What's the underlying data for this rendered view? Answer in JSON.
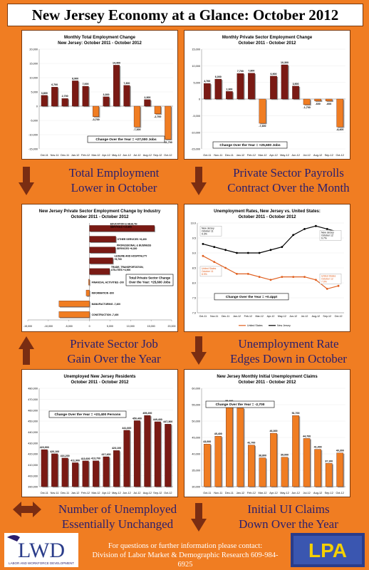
{
  "title": "New Jersey Economy at a Glance: October 2012",
  "captions": {
    "c1": [
      "Total Employment",
      "Lower in October"
    ],
    "c2": [
      "Private Sector Payrolls",
      "Contract Over the Month"
    ],
    "c3": [
      "Private Sector Job",
      "Gain Over the Year"
    ],
    "c4": [
      "Unemployment Rate",
      "Edges Down in October"
    ],
    "c5": [
      "Number of Unemployed",
      "Essentially Unchanged"
    ],
    "c6": [
      "Initial UI Claims",
      "Down Over the Year"
    ]
  },
  "footer": {
    "line1": "For questions or further information please contact:",
    "line2": "Division of Labor Market & Demographic Research 609-984-6925",
    "lwd_logo": "LWD",
    "lwd_sub": "LABOR AND WORKFORCE DEVELOPMENT",
    "lpa_logo": "LPA"
  },
  "colors": {
    "accent": "#f07d22",
    "bar_dark": "#7a1a14",
    "bar_orange": "#f07d22",
    "navy": "#2a1e6e"
  },
  "chart_data": [
    {
      "type": "bar",
      "title": "Monthly Total Employment Change",
      "subtitle": "New Jersey: October 2011 - October 2012",
      "categories": [
        "Oct-11",
        "Nov-11",
        "Dec-11",
        "Jan-12",
        "Feb-12",
        "Mar-12",
        "Apr-12",
        "May-12",
        "Jun-12",
        "Jul-12",
        "Aug-12",
        "Sep-12",
        "Oct-12"
      ],
      "values": [
        3800,
        6700,
        2700,
        8900,
        7000,
        -3700,
        3300,
        14400,
        7300,
        -7300,
        2300,
        -2700,
        -11700
      ],
      "value_labels": [
        "3,800",
        "6,700",
        "2,700",
        "8,900",
        "7,000",
        "-3,700",
        "3,300",
        "14,400",
        "7,300",
        "-7,300",
        "2,300",
        "-2,700",
        "-11,700"
      ],
      "ylim": [
        -15000,
        20000
      ],
      "yticks": [
        "20,000",
        "15,000",
        "10,000",
        "5,000",
        "0",
        "-5,000",
        "-10,000",
        "-15,000"
      ],
      "annotation": "Change Over the Year = +27,000 Jobs"
    },
    {
      "type": "bar",
      "title": "Monthly Private Sector Employment Change",
      "subtitle": "October 2011 - October 2012",
      "categories": [
        "Oct-11",
        "Nov-11",
        "Dec-11",
        "Jan-12",
        "Feb-12",
        "Mar-12",
        "Apr-12",
        "May-12",
        "Jun-12",
        "Jul-12",
        "Aug-12",
        "Sep-12",
        "Oct-12"
      ],
      "values": [
        4700,
        6000,
        2300,
        7700,
        7800,
        -7300,
        6900,
        10300,
        3900,
        -1700,
        -600,
        -600,
        -8400
      ],
      "value_labels": [
        "4,700",
        "6,000",
        "2,300",
        "7,700",
        "7,800",
        "-7,300",
        "6,900",
        "10,300",
        "3,900",
        "-1,700",
        "-600",
        "-600",
        "-8,400"
      ],
      "ylim": [
        -15000,
        15000
      ],
      "yticks": [
        "15,000",
        "10,000",
        "5,000",
        "0",
        "-5,000",
        "-10,000",
        "-15,000"
      ],
      "annotation": "Change Over the Year = +25,600 Jobs"
    },
    {
      "type": "bar",
      "title": "New Jersey Private Sector Employment Change by Industry",
      "subtitle": "October 2011 - October 2012",
      "categories": [
        "EDUCATION & HEALTH SERVICES +15,800",
        "OTHER SERVICES +6,400",
        "PROFESSIONAL & BUSINESS SERVICES +6,300",
        "LEISURE AND HOSPITALITY +5,700",
        "TRADE, TRANSPORTATION, UTILITIES +4,900",
        "FINANCIAL ACTIVITIES -200",
        "INFORMATION -800",
        "MANUFACTURING -7,400",
        "CONSTRUCTION -7,400"
      ],
      "values": [
        15800,
        6400,
        6300,
        5700,
        4900,
        -200,
        -800,
        -7400,
        -7400
      ],
      "xlim": [
        -15000,
        20000
      ],
      "xticks": [
        "-15,000",
        "-10,000",
        "-5,000",
        "0",
        "5,000",
        "10,000",
        "15,000",
        "20,000"
      ],
      "annotation": [
        "Total Private Sector Change",
        "Over the Year: +25,600 Jobs"
      ]
    },
    {
      "type": "line",
      "title": "Unemployment Rates, New Jersey vs. United States:",
      "subtitle": "October 2011 - October 2012",
      "categories": [
        "Oct-11",
        "Nov-11",
        "Dec-11",
        "Jan-12",
        "Feb-12",
        "Mar-12",
        "Apr-12",
        "May-12",
        "Jun-12",
        "Jul-12",
        "Aug-12",
        "Sep-12",
        "Oct-12"
      ],
      "series": [
        {
          "name": "United States",
          "values": [
            8.9,
            8.7,
            8.5,
            8.3,
            8.3,
            8.2,
            8.1,
            8.2,
            8.2,
            8.2,
            8.1,
            7.8,
            7.9
          ]
        },
        {
          "name": "New Jersey",
          "values": [
            9.3,
            9.2,
            9.1,
            9.0,
            9.0,
            9.0,
            9.1,
            9.2,
            9.6,
            9.8,
            9.9,
            9.8,
            9.7
          ]
        }
      ],
      "ylim": [
        7.0,
        10.0
      ],
      "yticks": [
        "10.0",
        "9.5",
        "9.0",
        "8.5",
        "8.0",
        "7.5",
        "7.0"
      ],
      "callouts": {
        "nj_start": [
          "New Jersey",
          "October 11",
          "9.3%"
        ],
        "nj_end": [
          "New Jersey",
          "October 12",
          "9.7%"
        ],
        "us_start": [
          "United States",
          "October 11",
          "8.9%"
        ],
        "us_end": [
          "United States",
          "October 12",
          "7.9%"
        ]
      },
      "annotation": "Change Over the Year = +0.4ppt",
      "legend_position": "bottom"
    },
    {
      "type": "bar",
      "title": "Unemployed New Jersey Residents",
      "subtitle": "October 2011 - October 2012",
      "categories": [
        "Oct-11",
        "Nov-11",
        "Dec-11",
        "Jan-12",
        "Feb-12",
        "Mar-12",
        "Apr-12",
        "May-12",
        "Jun-12",
        "Jul-12",
        "Aug-12",
        "Sep-12",
        "Oct-12"
      ],
      "values": [
        423900,
        420100,
        416200,
        411900,
        413600,
        413700,
        417400,
        423100,
        441600,
        450400,
        455200,
        449400,
        447300
      ],
      "value_labels": [
        "423,900",
        "420,100",
        "416,200",
        "411,900",
        "413,600",
        "413,700",
        "417,400",
        "423,100",
        "441,600",
        "450,400",
        "455,200",
        "449,400",
        "447,300"
      ],
      "ylim": [
        390000,
        480000
      ],
      "yticks": [
        "480,000",
        "470,000",
        "460,000",
        "450,000",
        "440,000",
        "430,000",
        "420,000",
        "410,000",
        "400,000",
        "390,000"
      ],
      "annotation": "Change Over the Year = +23,400 Persons"
    },
    {
      "type": "bar",
      "title": "New Jersey Monthly Initial Unemployment Claims",
      "subtitle": "October 2011 - October 2012",
      "categories": [
        "Oct-11",
        "Nov-11",
        "Dec-11",
        "Jan-12",
        "Feb-12",
        "Mar-12",
        "Apr-12",
        "May-12",
        "Jun-12",
        "Jul-12",
        "Aug-12",
        "Sep-12",
        "Oct-12"
      ],
      "values": [
        43000,
        45400,
        55400,
        54000,
        42700,
        38800,
        46300,
        39000,
        51700,
        44700,
        41400,
        37100,
        40300
      ],
      "value_labels": [
        "43,000",
        "45,400",
        "55,400",
        "54,000",
        "42,700",
        "38,800",
        "46,300",
        "39,000",
        "51,700",
        "44,700",
        "41,400",
        "37,100",
        "40,300"
      ],
      "ylim": [
        30000,
        60000
      ],
      "yticks": [
        "60,000",
        "55,000",
        "50,000",
        "45,000",
        "40,000",
        "35,000",
        "30,000"
      ],
      "annotation": "Change Over the Year = -2,700"
    }
  ]
}
